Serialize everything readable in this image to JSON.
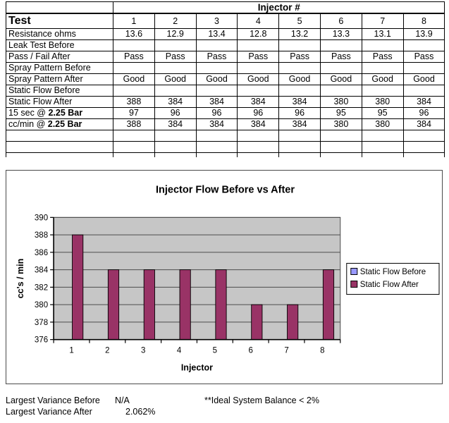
{
  "table": {
    "injector_header": "Injector #",
    "rows": [
      {
        "label": "Test",
        "style": "test",
        "values": [
          "1",
          "2",
          "3",
          "4",
          "5",
          "6",
          "7",
          "8"
        ]
      },
      {
        "label": "Resistance ohms",
        "values": [
          "13.6",
          "12.9",
          "13.4",
          "12.8",
          "13.2",
          "13.3",
          "13.1",
          "13.9"
        ]
      },
      {
        "label": "Leak Test Before",
        "values": [
          "",
          "",
          "",
          "",
          "",
          "",
          "",
          ""
        ]
      },
      {
        "label": "Pass / Fail After",
        "values": [
          "Pass",
          "Pass",
          "Pass",
          "Pass",
          "Pass",
          "Pass",
          "Pass",
          "Pass"
        ]
      },
      {
        "label": "Spray Pattern Before",
        "values": [
          "",
          "",
          "",
          "",
          "",
          "",
          "",
          ""
        ]
      },
      {
        "label": "Spray Pattern After",
        "values": [
          "Good",
          "Good",
          "Good",
          "Good",
          "Good",
          "Good",
          "Good",
          "Good"
        ]
      },
      {
        "label": "Static Flow Before",
        "values": [
          "",
          "",
          "",
          "",
          "",
          "",
          "",
          ""
        ]
      },
      {
        "label": "Static Flow After",
        "values": [
          "388",
          "384",
          "384",
          "384",
          "384",
          "380",
          "380",
          "384"
        ]
      },
      {
        "label": "15 sec @ ",
        "label_bold": "2.25 Bar",
        "values": [
          "97",
          "96",
          "96",
          "96",
          "96",
          "95",
          "95",
          "96"
        ]
      },
      {
        "label": "cc/min @ ",
        "label_bold": "2.25 Bar",
        "values": [
          "388",
          "384",
          "384",
          "384",
          "384",
          "380",
          "380",
          "384"
        ]
      },
      {
        "label": "",
        "values": [
          "",
          "",
          "",
          "",
          "",
          "",
          "",
          ""
        ]
      },
      {
        "label": "",
        "values": [
          "",
          "",
          "",
          "",
          "",
          "",
          "",
          ""
        ]
      }
    ]
  },
  "chart_data": {
    "type": "bar",
    "title": "Injector Flow Before vs After",
    "categories": [
      "1",
      "2",
      "3",
      "4",
      "5",
      "6",
      "7",
      "8"
    ],
    "series": [
      {
        "name": "Static Flow Before",
        "color": "#9999FF",
        "values": [
          null,
          null,
          null,
          null,
          null,
          null,
          null,
          null
        ]
      },
      {
        "name": "Static Flow After",
        "color": "#993366",
        "values": [
          388,
          384,
          384,
          384,
          384,
          380,
          380,
          384
        ]
      }
    ],
    "xlabel": "Injector",
    "ylabel": "cc's / min",
    "ylim": [
      376,
      390
    ],
    "ytick_step": 2,
    "grid": true,
    "plot_bg": "#C6C6C6",
    "gridline_color": "#4d4d4d",
    "legend_position": "right"
  },
  "footer": {
    "variance_before_label": "Largest Variance Before",
    "variance_before_value": "N/A",
    "variance_after_label": "Largest Variance After",
    "variance_after_value": "2.062%",
    "note": "**Ideal System Balance < 2%"
  }
}
